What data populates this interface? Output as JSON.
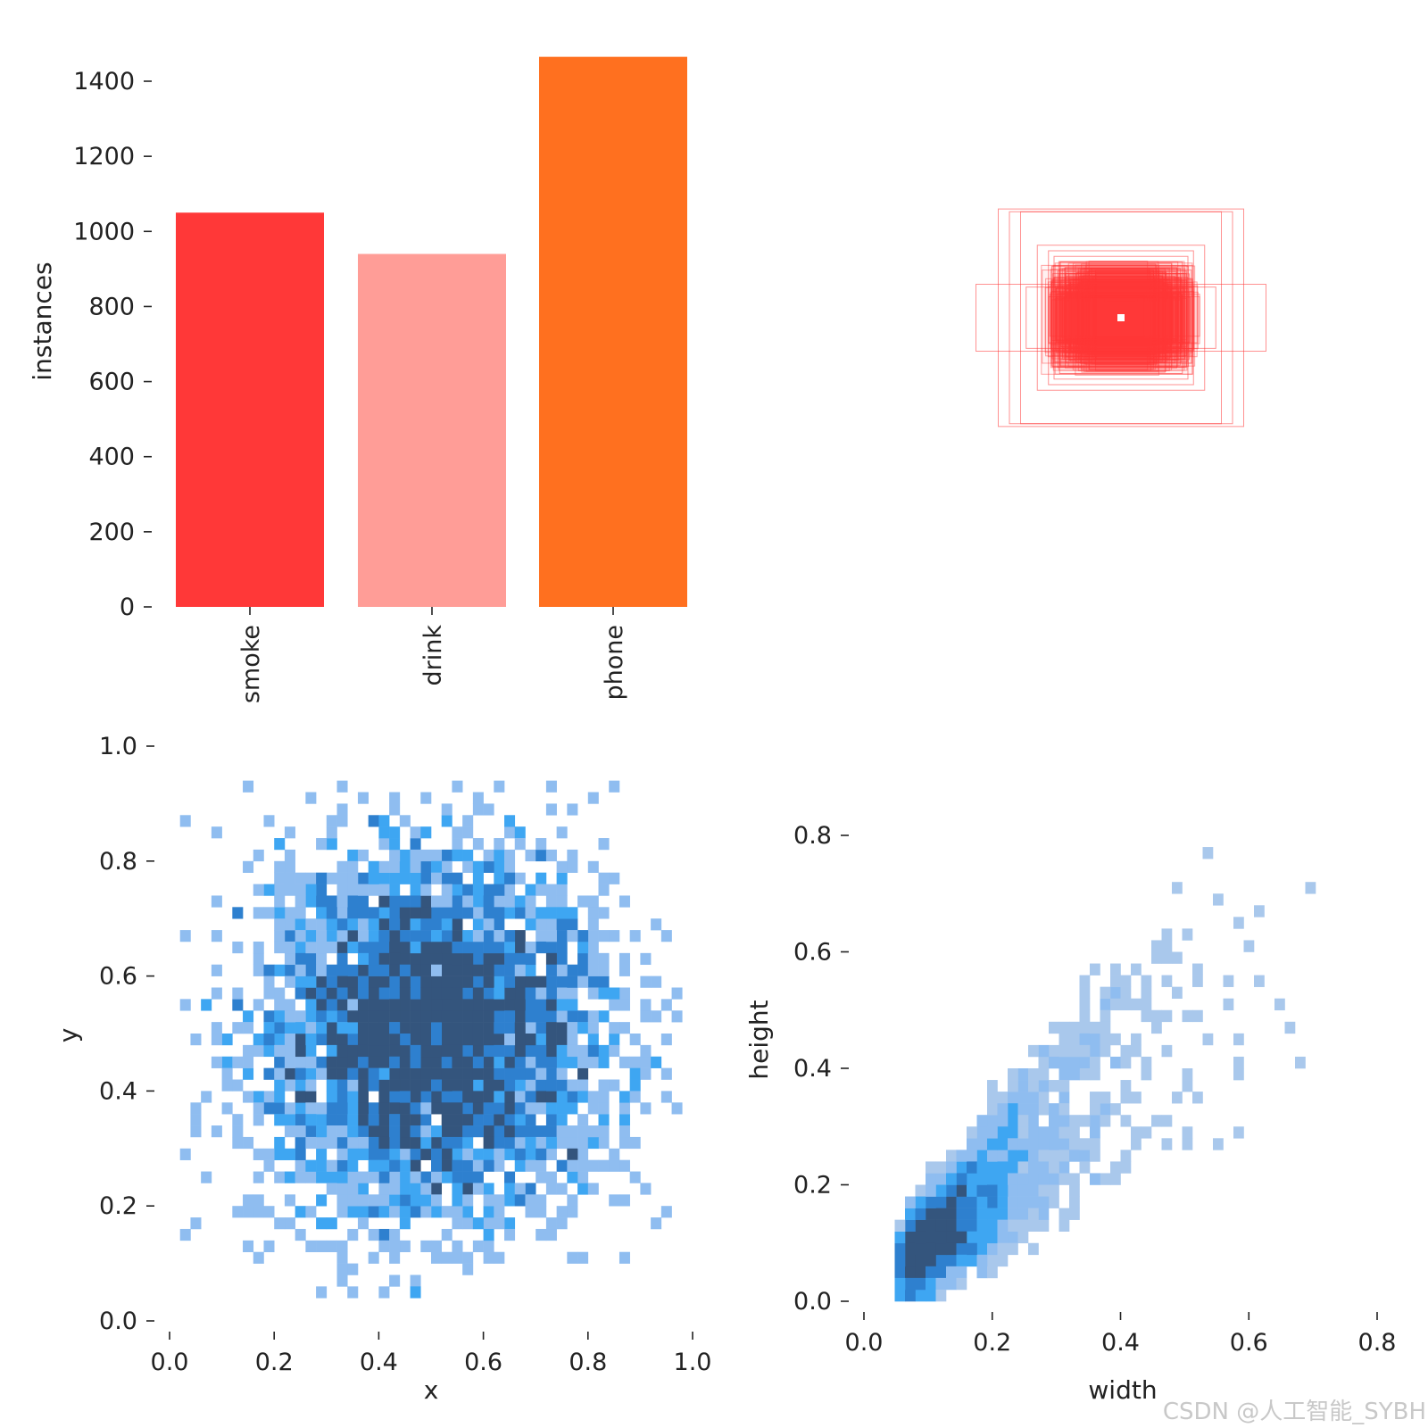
{
  "chart_data": [
    {
      "type": "bar",
      "categories": [
        "smoke",
        "drink",
        "phone"
      ],
      "values": [
        1050,
        940,
        1465
      ],
      "colors": [
        "#ff3838",
        "#ff9d97",
        "#ff701f"
      ],
      "ylabel": "instances",
      "ylim": [
        0,
        1500
      ],
      "yticks": [
        "0",
        "200",
        "400",
        "600",
        "800",
        "1000",
        "1200",
        "1400"
      ]
    },
    {
      "type": "scatter",
      "title": "",
      "description_values": {
        "box_widths": [
          0.25,
          0.3,
          0.3,
          0.35,
          0.4,
          0.45,
          0.5,
          0.55,
          0.6,
          0.65,
          0.7,
          0.75,
          0.8,
          0.9,
          1.0,
          1.1,
          1.2,
          1.3,
          1.5,
          1.7,
          1.8,
          2.0,
          2.2,
          2.6
        ],
        "box_heights": [
          0.3,
          0.25,
          0.35,
          0.4,
          0.45,
          0.5,
          0.55,
          0.6,
          0.65,
          0.5,
          0.7,
          0.75,
          0.8,
          0.6,
          0.9,
          1.0,
          1.1,
          1.2,
          1.3,
          0.55,
          1.9,
          1.9,
          1.95,
          0.6
        ],
        "color": "#ff3838"
      }
    },
    {
      "type": "heatmap",
      "xlabel": "x",
      "ylabel": "y",
      "xlim": [
        0,
        1
      ],
      "ylim": [
        0,
        1
      ],
      "xticks": [
        "0.0",
        "0.2",
        "0.4",
        "0.6",
        "0.8",
        "1.0"
      ],
      "yticks": [
        "0.0",
        "0.2",
        "0.4",
        "0.6",
        "0.8",
        "1.0"
      ],
      "distribution": {
        "center_x": 0.5,
        "center_y": 0.5,
        "spread_x": 0.17,
        "spread_y": 0.16
      },
      "bins": 50,
      "colors": [
        "#8fbdf0",
        "#3ea6f2",
        "#2e80cf",
        "#34557d"
      ]
    },
    {
      "type": "heatmap",
      "xlabel": "width",
      "ylabel": "height",
      "xlim": [
        0,
        0.8
      ],
      "ylim": [
        0,
        0.9
      ],
      "xticks": [
        "0.0",
        "0.2",
        "0.4",
        "0.6",
        "0.8"
      ],
      "yticks": [
        "0.0",
        "0.2",
        "0.4",
        "0.6",
        "0.8"
      ],
      "distribution": {
        "peak_width": 0.06,
        "peak_height": 0.06
      },
      "bins": 50,
      "colors": [
        "#a9c8ec",
        "#8fbdf0",
        "#3ea6f2",
        "#2e80cf",
        "#34557d"
      ]
    }
  ],
  "watermark": "CSDN @人工智能_SYBH"
}
